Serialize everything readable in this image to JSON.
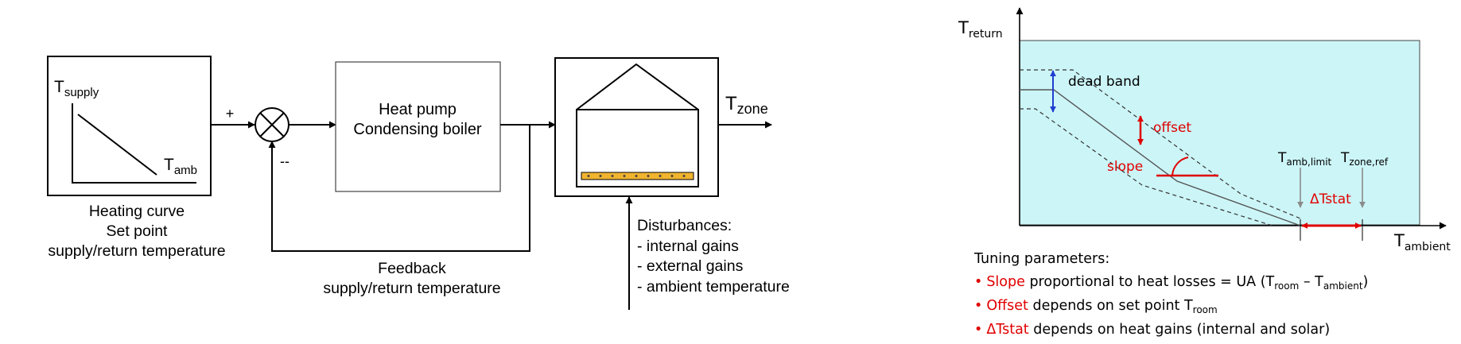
{
  "block_diagram": {
    "heating_curve_box": {
      "y_axis": {
        "main": "T",
        "sub": "supply"
      },
      "x_axis": {
        "main": "T",
        "sub": "amb"
      },
      "caption": [
        "Heating curve",
        "Set point",
        "supply/return temperature"
      ]
    },
    "summing_junction": {
      "plus_sign": "+",
      "minus_sign": "--"
    },
    "controller": {
      "lines": [
        "Heat pump",
        "Condensing boiler"
      ]
    },
    "output": {
      "main": "T",
      "sub": "zone"
    },
    "feedback": {
      "lines": [
        "Feedback",
        "supply/return temperature"
      ]
    },
    "disturbances": {
      "title": "Disturbances:",
      "items": [
        "- internal gains",
        "- external gains",
        "- ambient temperature"
      ]
    }
  },
  "heating_curve_chart": {
    "y_axis": {
      "main": "T",
      "sub": "return"
    },
    "x_axis": {
      "main": "T",
      "sub": "ambient"
    },
    "dead_band_label": "dead band",
    "offset_label": "offset",
    "slope_label": "slope",
    "t_amb_limit": {
      "main": "T",
      "sub": "amb,limit"
    },
    "t_zone_ref": {
      "main": "T",
      "sub": "zone,ref"
    },
    "delta_tstat_label": "ΔTstat",
    "background_color": "#ccf5f7",
    "highlight_color": "#e00000"
  },
  "tuning": {
    "title": "Tuning parameters:",
    "bullet": "•",
    "slope": {
      "name": "Slope",
      "text": "  proportional to heat losses = UA (T",
      "sub1": "room",
      "mid": " – T",
      "sub2": "ambient",
      "end": ")"
    },
    "offset": {
      "name": "Offset",
      "text": " depends on set point T",
      "sub": "room"
    },
    "delta": {
      "name": "ΔTstat",
      "text": " depends on heat gains (internal and solar)"
    }
  }
}
